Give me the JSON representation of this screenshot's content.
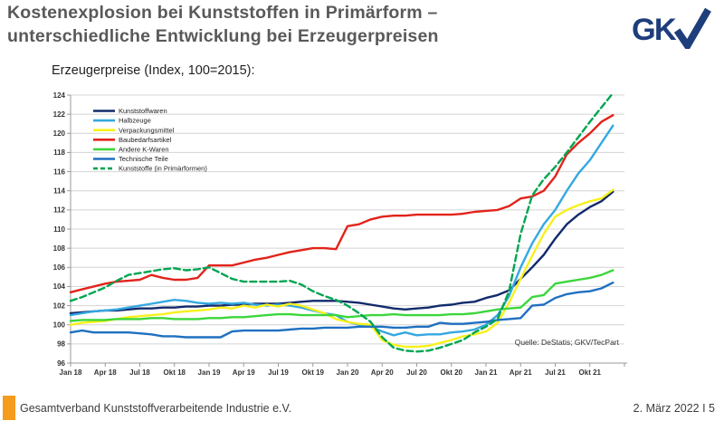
{
  "header": {
    "title_line1": "Kostenexplosion bei Kunststoffen in Primärform –",
    "title_line2": "unterschiedliche Entwicklung bei Erzeugerpreisen",
    "logo_text": "GK"
  },
  "colors": {
    "title_gray": "#595959",
    "logo_navy": "#1E3D7B",
    "accent_orange": "#F59B1E",
    "grid_gray": "#d4d4d4",
    "axis_gray": "#9a9a9a",
    "tick_label": "#333333"
  },
  "chart_data": {
    "type": "line",
    "title": "Erzeugerpreise (Index, 100=2015):",
    "x_unit": "month",
    "x_tick_labels": [
      "Jan 18",
      "Apr 18",
      "Jul 18",
      "Okt 18",
      "Jan 19",
      "Apr 19",
      "Jul 19",
      "Okt 19",
      "Jan 20",
      "Apr 20",
      "Jul 20",
      "Okt 20",
      "Jan 21",
      "Apr 21",
      "Jul 21",
      "Okt 21"
    ],
    "ylim": [
      96,
      124
    ],
    "ytick_step": 2,
    "grid": true,
    "legend_position": "top-left",
    "source_note": "Quelle: DeStatis; GKV/TecPart",
    "series": [
      {
        "name": "Kunststoffwaren",
        "color": "#122a6b",
        "dashed": false,
        "values": [
          101.2,
          101.3,
          101.4,
          101.5,
          101.5,
          101.6,
          101.7,
          101.7,
          101.8,
          101.8,
          101.9,
          101.9,
          102.0,
          102.0,
          102.1,
          102.1,
          102.2,
          102.2,
          102.2,
          102.3,
          102.4,
          102.5,
          102.5,
          102.5,
          102.4,
          102.3,
          102.1,
          101.9,
          101.7,
          101.6,
          101.7,
          101.8,
          102.0,
          102.1,
          102.3,
          102.4,
          102.8,
          103.1,
          103.6,
          104.8,
          106.0,
          107.3,
          109.0,
          110.5,
          111.5,
          112.3,
          112.9,
          113.9
        ]
      },
      {
        "name": "Halbzeuge",
        "color": "#35a8e0",
        "dashed": false,
        "values": [
          101.0,
          101.2,
          101.4,
          101.5,
          101.6,
          101.8,
          102.0,
          102.2,
          102.4,
          102.6,
          102.5,
          102.3,
          102.2,
          102.3,
          102.2,
          102.3,
          102.1,
          102.0,
          102.1,
          102.0,
          101.8,
          101.5,
          101.2,
          101.0,
          100.3,
          100.0,
          99.8,
          99.3,
          98.9,
          99.2,
          98.9,
          99.0,
          99.0,
          99.2,
          99.3,
          99.5,
          100.0,
          101.0,
          103.0,
          106.0,
          108.5,
          110.5,
          112.0,
          114.0,
          115.8,
          117.2,
          119.0,
          120.8
        ]
      },
      {
        "name": "Verpackungsmittel",
        "color": "#f7f11c",
        "dashed": false,
        "values": [
          100.0,
          100.2,
          100.3,
          100.4,
          100.6,
          100.8,
          100.9,
          101.0,
          101.1,
          101.3,
          101.4,
          101.5,
          101.6,
          101.8,
          101.7,
          102.0,
          101.8,
          102.1,
          101.9,
          102.2,
          102.0,
          101.6,
          101.2,
          100.6,
          100.3,
          100.1,
          100.0,
          98.4,
          97.9,
          97.7,
          97.7,
          97.8,
          98.1,
          98.4,
          98.8,
          99.0,
          99.3,
          100.2,
          102.3,
          104.8,
          107.2,
          109.5,
          111.3,
          112.0,
          112.5,
          112.9,
          113.2,
          114.1
        ]
      },
      {
        "name": "Baubedarfsartikel",
        "color": "#e2231a",
        "dashed": false,
        "values": [
          103.4,
          103.7,
          104.0,
          104.3,
          104.5,
          104.6,
          104.7,
          105.2,
          104.9,
          104.7,
          104.7,
          104.9,
          106.2,
          106.2,
          106.2,
          106.5,
          106.8,
          107.0,
          107.3,
          107.6,
          107.8,
          108.0,
          108.0,
          107.9,
          110.3,
          110.5,
          111.0,
          111.3,
          111.4,
          111.4,
          111.5,
          111.5,
          111.5,
          111.5,
          111.6,
          111.8,
          111.9,
          112.0,
          112.4,
          113.2,
          113.4,
          114.0,
          115.5,
          117.8,
          119.0,
          120.0,
          121.2,
          121.9
        ]
      },
      {
        "name": "Andere K-Waren",
        "color": "#3cd63c",
        "dashed": false,
        "values": [
          100.4,
          100.5,
          100.5,
          100.5,
          100.6,
          100.6,
          100.6,
          100.7,
          100.7,
          100.6,
          100.6,
          100.6,
          100.7,
          100.7,
          100.8,
          100.8,
          100.9,
          101.0,
          101.1,
          101.1,
          101.0,
          101.0,
          101.0,
          101.0,
          100.8,
          100.9,
          101.0,
          101.0,
          101.1,
          101.0,
          101.0,
          101.0,
          101.0,
          101.1,
          101.1,
          101.2,
          101.4,
          101.6,
          101.7,
          101.8,
          102.9,
          103.1,
          104.3,
          104.5,
          104.7,
          104.9,
          105.2,
          105.7
        ]
      },
      {
        "name": "Technische Teile",
        "color": "#1f70c1",
        "dashed": false,
        "values": [
          99.2,
          99.4,
          99.2,
          99.2,
          99.2,
          99.2,
          99.1,
          99.0,
          98.8,
          98.8,
          98.7,
          98.7,
          98.7,
          98.7,
          99.3,
          99.4,
          99.4,
          99.4,
          99.4,
          99.5,
          99.6,
          99.6,
          99.7,
          99.7,
          99.7,
          99.8,
          99.8,
          99.8,
          99.7,
          99.7,
          99.8,
          99.8,
          100.2,
          100.1,
          100.1,
          100.2,
          100.3,
          100.5,
          100.6,
          100.7,
          102.0,
          102.1,
          102.8,
          103.2,
          103.4,
          103.5,
          103.8,
          104.4
        ]
      },
      {
        "name": "Kunststoffe (in Primärformen)",
        "color": "#00a551",
        "dashed": true,
        "values": [
          102.5,
          102.9,
          103.4,
          103.9,
          104.6,
          105.2,
          105.4,
          105.6,
          105.8,
          105.9,
          105.7,
          105.8,
          106.0,
          105.4,
          104.8,
          104.5,
          104.5,
          104.5,
          104.5,
          104.6,
          104.2,
          103.5,
          103.0,
          102.6,
          102.0,
          101.2,
          100.3,
          98.7,
          97.6,
          97.3,
          97.2,
          97.3,
          97.6,
          98.0,
          98.4,
          99.2,
          99.8,
          100.6,
          103.5,
          109.5,
          113.5,
          115.2,
          116.5,
          118.0,
          119.6,
          121.2,
          122.7,
          124.2
        ]
      }
    ]
  },
  "footer": {
    "left": "Gesamtverband Kunststoffverarbeitende Industrie e.V.",
    "right": "2. März 2022 I 5"
  }
}
